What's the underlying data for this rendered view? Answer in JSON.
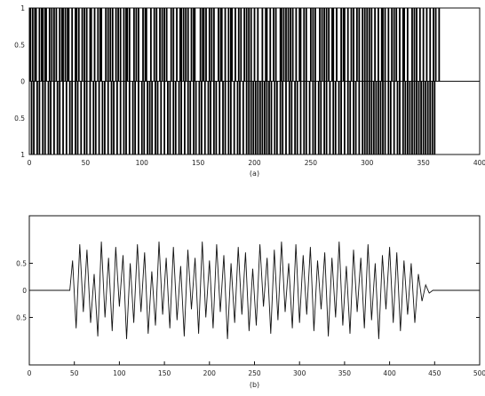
{
  "chart_data": [
    {
      "type": "bar",
      "panel_label": "(a)",
      "xlim": [
        0,
        400
      ],
      "ylim": [
        -1,
        1
      ],
      "x_ticks": [
        "0",
        "50",
        "100",
        "150",
        "200",
        "250",
        "300",
        "350",
        "400"
      ],
      "y_ticks": [
        "1",
        "0.5",
        "0",
        "0.5",
        "1"
      ],
      "grid": false,
      "series": [
        {
          "values_x": [
            1,
            3,
            5,
            6,
            9,
            11,
            12,
            14,
            15,
            18,
            20,
            22,
            24,
            27,
            29,
            30,
            32,
            34,
            35,
            38,
            41,
            42,
            44,
            47,
            49,
            51,
            54,
            55,
            58,
            61,
            63,
            64,
            68,
            70,
            72,
            74,
            77,
            79,
            81,
            84,
            86,
            87,
            89,
            93,
            95,
            97,
            101,
            103,
            104,
            108,
            111,
            113,
            116,
            118,
            120,
            122,
            126,
            128,
            131,
            134,
            135,
            137,
            139,
            141,
            144,
            146,
            147,
            152,
            154,
            155,
            157,
            160,
            162,
            164,
            168,
            170,
            171,
            174,
            177,
            179,
            180,
            183,
            186,
            188,
            191,
            193,
            195,
            197,
            200,
            203,
            207,
            210,
            211,
            214,
            217,
            219,
            223,
            224,
            226,
            228,
            230,
            232,
            234,
            237,
            240,
            241,
            244,
            246,
            250,
            252,
            254,
            258,
            260,
            262,
            264,
            266,
            269,
            270,
            273,
            277,
            279,
            280,
            283,
            286,
            288,
            291,
            293,
            296,
            298,
            300,
            302,
            304,
            307,
            310,
            313,
            314,
            316,
            319,
            322,
            324,
            326,
            329,
            332,
            333,
            336,
            340,
            342,
            344,
            347,
            350,
            353,
            356,
            359,
            361,
            364
          ],
          "values_y": [
            1,
            1,
            1,
            1,
            1,
            1,
            1,
            1,
            1,
            1,
            1,
            1,
            1,
            1,
            1,
            1,
            1,
            1,
            1,
            1,
            1,
            1,
            1,
            1,
            1,
            1,
            1,
            1,
            1,
            1,
            1,
            1,
            1,
            1,
            1,
            1,
            1,
            1,
            1,
            1,
            1,
            1,
            1,
            1,
            1,
            1,
            1,
            1,
            1,
            1,
            1,
            1,
            1,
            1,
            1,
            1,
            1,
            1,
            1,
            1,
            1,
            1,
            1,
            1,
            1,
            1,
            1,
            1,
            1,
            1,
            1,
            1,
            1,
            1,
            1,
            1,
            1,
            1,
            1,
            1,
            1,
            1,
            1,
            1,
            1,
            1,
            1,
            1,
            1,
            1,
            1,
            1,
            1,
            1,
            1,
            1,
            1,
            1,
            1,
            1,
            1,
            1,
            1,
            1,
            1,
            1,
            1,
            1,
            1,
            1,
            1,
            1,
            1,
            1,
            1,
            1,
            1,
            1,
            1,
            1,
            1,
            1,
            1,
            1,
            1,
            1,
            1,
            1,
            1,
            1,
            1,
            1,
            1,
            1,
            1,
            1,
            1,
            1,
            1,
            1,
            1,
            1,
            1,
            1,
            1,
            1,
            1,
            1,
            1,
            1,
            1,
            1,
            1,
            1,
            1
          ]
        },
        {
          "values_x": [
            2,
            4,
            7,
            9,
            12,
            14,
            17,
            19,
            22,
            25,
            27,
            30,
            33,
            36,
            38,
            41,
            43,
            46,
            49,
            51,
            54,
            57,
            59,
            62,
            65,
            67,
            70,
            73,
            75,
            78,
            81,
            84,
            86,
            89,
            92,
            94,
            97,
            100,
            102,
            105,
            107,
            109,
            112,
            114,
            117,
            120,
            123,
            125,
            128,
            130,
            133,
            135,
            138,
            141,
            143,
            146,
            148,
            151,
            153,
            156,
            159,
            161,
            164,
            166,
            169,
            172,
            174,
            177,
            179,
            182,
            185,
            187,
            190,
            193,
            195,
            197,
            199,
            201,
            203,
            205,
            207,
            209,
            211,
            213,
            215,
            218,
            220,
            223,
            225,
            228,
            231,
            233,
            236,
            238,
            241,
            244,
            246,
            249,
            252,
            254,
            257,
            259,
            262,
            264,
            267,
            270,
            272,
            275,
            277,
            280,
            283,
            285,
            288,
            290,
            293,
            296,
            298,
            300,
            302,
            304,
            306,
            308,
            310,
            312,
            314,
            316,
            319,
            321,
            324,
            327,
            329,
            332,
            334,
            336,
            338,
            340,
            342,
            344,
            346,
            348,
            350,
            352,
            354,
            356,
            358,
            360
          ],
          "values_y": [
            -1,
            -1,
            -1,
            -1,
            -1,
            -1,
            -1,
            -1,
            -1,
            -1,
            -1,
            -1,
            -1,
            -1,
            -1,
            -1,
            -1,
            -1,
            -1,
            -1,
            -1,
            -1,
            -1,
            -1,
            -1,
            -1,
            -1,
            -1,
            -1,
            -1,
            -1,
            -1,
            -1,
            -1,
            -1,
            -1,
            -1,
            -1,
            -1,
            -1,
            -1,
            -1,
            -1,
            -1,
            -1,
            -1,
            -1,
            -1,
            -1,
            -1,
            -1,
            -1,
            -1,
            -1,
            -1,
            -1,
            -1,
            -1,
            -1,
            -1,
            -1,
            -1,
            -1,
            -1,
            -1,
            -1,
            -1,
            -1,
            -1,
            -1,
            -1,
            -1,
            -1,
            -1,
            -1,
            -1,
            -1,
            -1,
            -1,
            -1,
            -1,
            -1,
            -1,
            -1,
            -1,
            -1,
            -1,
            -1,
            -1,
            -1,
            -1,
            -1,
            -1,
            -1,
            -1,
            -1,
            -1,
            -1,
            -1,
            -1,
            -1,
            -1,
            -1,
            -1,
            -1,
            -1,
            -1,
            -1,
            -1,
            -1,
            -1,
            -1,
            -1,
            -1,
            -1,
            -1,
            -1,
            -1,
            -1,
            -1,
            -1,
            -1,
            -1,
            -1,
            -1,
            -1,
            -1,
            -1,
            -1,
            -1,
            -1,
            -1,
            -1,
            -1,
            -1,
            -1,
            -1,
            -1,
            -1,
            -1,
            -1,
            -1,
            -1,
            -1,
            -1,
            -1
          ]
        }
      ]
    },
    {
      "type": "line",
      "panel_label": "(b)",
      "xlim": [
        0,
        500
      ],
      "ylim": [
        -1,
        1
      ],
      "x_ticks": [
        "0",
        "50",
        "100",
        "150",
        "200",
        "250",
        "300",
        "350",
        "400",
        "450",
        "500"
      ],
      "y_ticks": [
        "0.5",
        "0",
        "0.5"
      ],
      "grid": false,
      "series": [
        {
          "x": [
            0,
            45,
            48,
            52,
            56,
            60,
            64,
            68,
            72,
            76,
            80,
            84,
            88,
            92,
            96,
            100,
            104,
            108,
            112,
            116,
            120,
            124,
            128,
            132,
            136,
            140,
            144,
            148,
            152,
            156,
            160,
            164,
            168,
            172,
            176,
            180,
            184,
            188,
            192,
            196,
            200,
            204,
            208,
            212,
            216,
            220,
            224,
            228,
            232,
            236,
            240,
            244,
            248,
            252,
            256,
            260,
            264,
            268,
            272,
            276,
            280,
            284,
            288,
            292,
            296,
            300,
            304,
            308,
            312,
            316,
            320,
            324,
            328,
            332,
            336,
            340,
            344,
            348,
            352,
            356,
            360,
            364,
            368,
            372,
            376,
            380,
            384,
            388,
            392,
            396,
            400,
            404,
            408,
            412,
            416,
            420,
            424,
            428,
            432,
            436,
            440,
            444,
            448,
            452,
            456,
            460,
            500
          ],
          "y": [
            0,
            0,
            0.55,
            -0.7,
            0.85,
            -0.4,
            0.75,
            -0.6,
            0.3,
            -0.85,
            0.9,
            -0.5,
            0.6,
            -0.75,
            0.8,
            -0.3,
            0.65,
            -0.9,
            0.5,
            -0.6,
            0.85,
            -0.4,
            0.7,
            -0.8,
            0.35,
            -0.65,
            0.9,
            -0.45,
            0.6,
            -0.7,
            0.8,
            -0.55,
            0.45,
            -0.85,
            0.75,
            -0.35,
            0.6,
            -0.8,
            0.9,
            -0.5,
            0.55,
            -0.7,
            0.85,
            -0.4,
            0.65,
            -0.9,
            0.5,
            -0.6,
            0.8,
            -0.45,
            0.7,
            -0.75,
            0.4,
            -0.65,
            0.85,
            -0.3,
            0.6,
            -0.8,
            0.75,
            -0.55,
            0.9,
            -0.4,
            0.5,
            -0.7,
            0.85,
            -0.6,
            0.65,
            -0.45,
            0.8,
            -0.75,
            0.55,
            -0.35,
            0.7,
            -0.85,
            0.6,
            -0.5,
            0.9,
            -0.65,
            0.45,
            -0.8,
            0.75,
            -0.4,
            0.6,
            -0.7,
            0.85,
            -0.55,
            0.5,
            -0.9,
            0.65,
            -0.35,
            0.8,
            -0.6,
            0.7,
            -0.75,
            0.55,
            -0.45,
            0.5,
            -0.6,
            0.3,
            -0.2,
            0.1,
            -0.05,
            0,
            0,
            0,
            0,
            0
          ]
        }
      ]
    }
  ]
}
